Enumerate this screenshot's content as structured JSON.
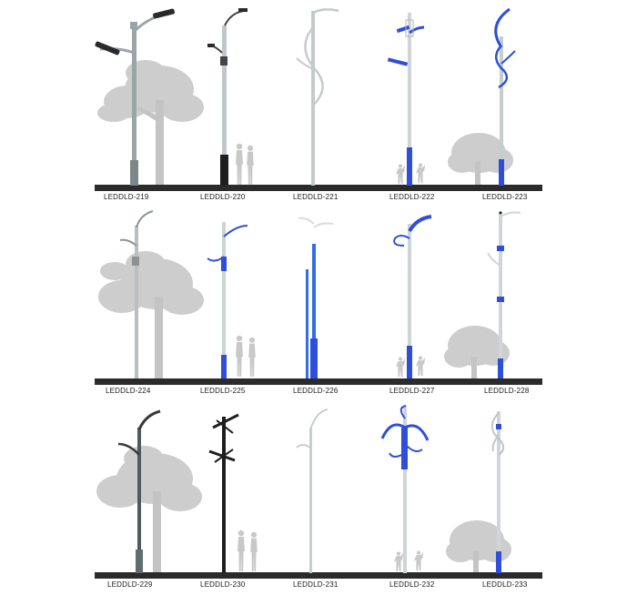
{
  "catalog": {
    "rows": [
      {
        "models": [
          "LEDDLD-219",
          "LEDDLD-220",
          "LEDDLD-221",
          "LEDDLD-222",
          "LEDDLD-223"
        ]
      },
      {
        "models": [
          "LEDDLD-224",
          "LEDDLD-225",
          "LEDDLD-226",
          "LEDDLD-227",
          "LEDDLD-228"
        ]
      },
      {
        "models": [
          "LEDDLD-229",
          "LEDDLD-230",
          "LEDDLD-231",
          "LEDDLD-232",
          "LEDDLD-233"
        ]
      }
    ]
  },
  "colors": {
    "background": "#ffffff",
    "ground": "#2b2b2b",
    "accent_blue": "#2f4fd8",
    "pole_grey": "#b9c0c2",
    "pole_dark": "#222222",
    "foliage": "#c9c9c9"
  }
}
